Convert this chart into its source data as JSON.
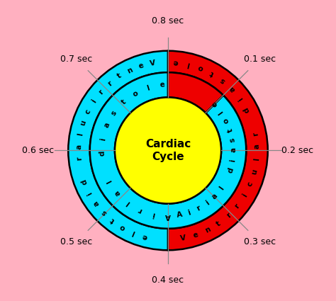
{
  "background_color": "#FFB0C0",
  "center_label": "Cardiac\nCycle",
  "center_color": "#FFFF00",
  "r_center": 0.2,
  "r_inner": 0.32,
  "r_mid": 0.47,
  "r_outer": 0.6,
  "cyan_color": "#00E0FF",
  "red_color": "#EE0000",
  "black_outline": "#000000",
  "time_labels": [
    "0.8 sec",
    "0.1 sec",
    "0.2 sec",
    "0.3 sec",
    "0.4 sec",
    "0.5 sec",
    "0.6 sec",
    "0.7 sec"
  ],
  "time_angles_deg": [
    90,
    45,
    0,
    -45,
    -90,
    -135,
    180,
    135
  ],
  "figsize": [
    4.74,
    4.25
  ],
  "dpi": 100
}
